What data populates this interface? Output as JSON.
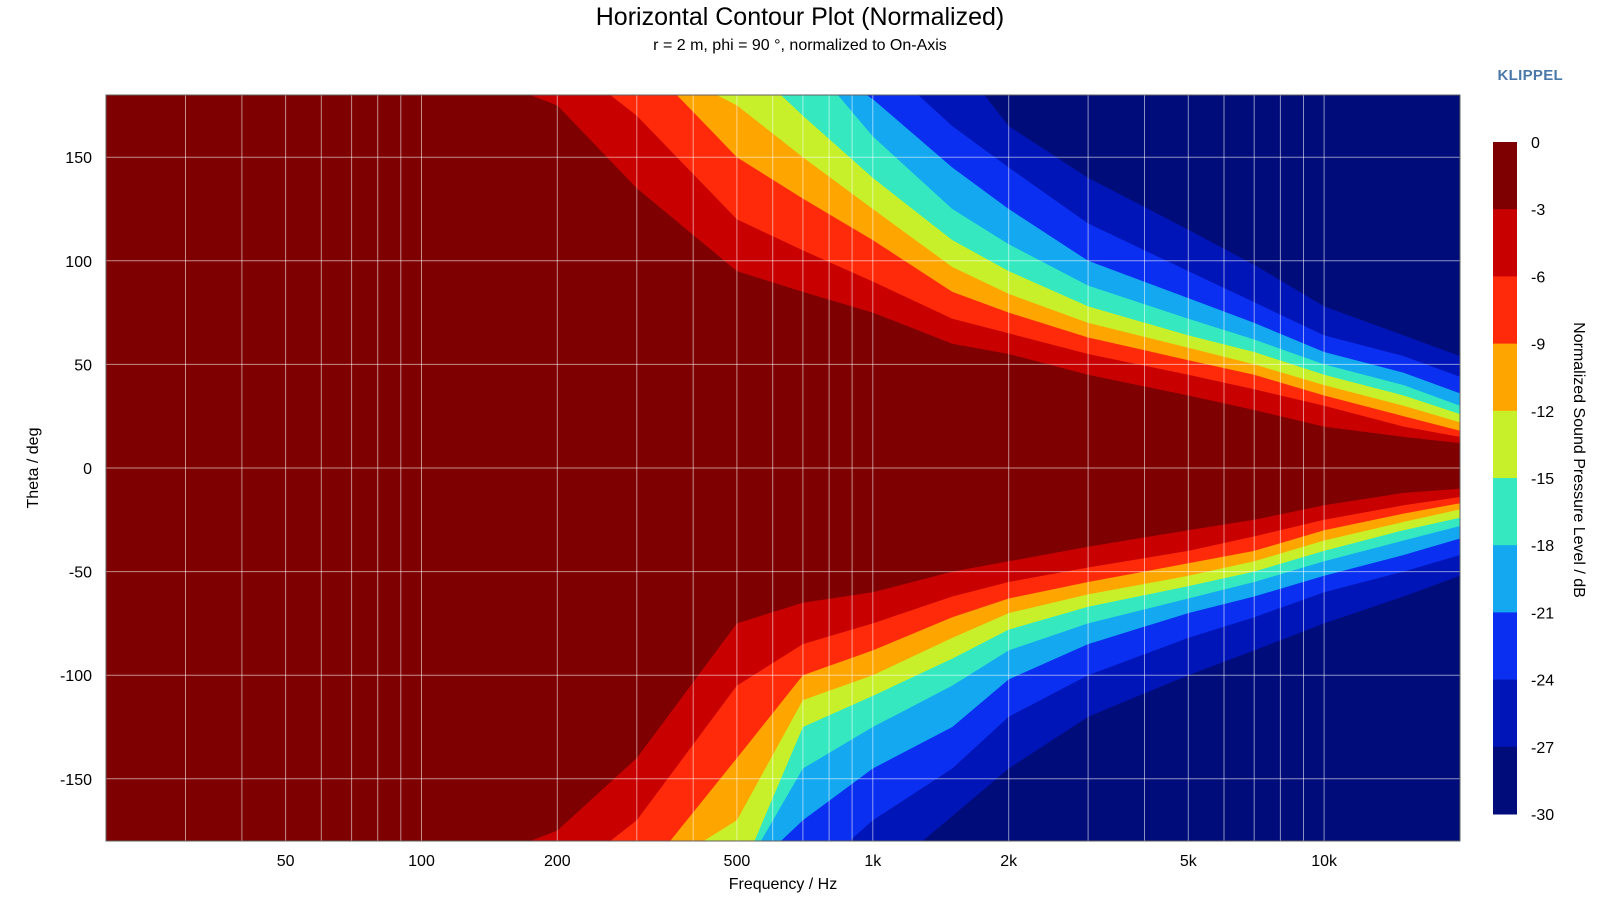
{
  "title": "Horizontal Contour Plot (Normalized)",
  "subtitle": "r = 2 m, phi = 90 °, normalized to On-Axis",
  "brand": "KLIPPEL",
  "chart_data": {
    "type": "heatmap",
    "title": "Horizontal Contour Plot (Normalized)",
    "subtitle": "r = 2 m, phi = 90 °, normalized to On-Axis",
    "xlabel": "Frequency / Hz",
    "ylabel": "Theta / deg",
    "colorbar_label": "Normalized Sound Pressure Level / dB",
    "x_scale": "log",
    "xlim": [
      20,
      20000
    ],
    "ylim": [
      -180,
      180
    ],
    "x_ticks": [
      50,
      100,
      200,
      500,
      1000,
      2000,
      5000,
      10000
    ],
    "x_tick_labels": [
      "50",
      "100",
      "200",
      "500",
      "1k",
      "2k",
      "5k",
      "10k"
    ],
    "y_ticks": [
      150,
      100,
      50,
      0,
      -50,
      -100,
      -150
    ],
    "y_tick_labels": [
      "150",
      "100",
      "50",
      "0",
      "-50",
      "-100",
      "-150"
    ],
    "grid": true,
    "colorbar_levels": [
      0,
      -3,
      -6,
      -9,
      -12,
      -15,
      -18,
      -21,
      -24,
      -27,
      -30
    ],
    "colorbar_tick_labels": [
      "0",
      "-3",
      "-6",
      "-9",
      "-12",
      "-15",
      "-18",
      "-21",
      "-24",
      "-27",
      "-30"
    ],
    "colorbar_colors": [
      "#7f0000",
      "#c90000",
      "#ff2a0a",
      "#ffa500",
      "#c8f02a",
      "#35e8c0",
      "#13a8f0",
      "#0a2ff0",
      "#0015b8",
      "#000c7a"
    ],
    "contour_frequencies_hz": [
      20,
      100,
      200,
      300,
      500,
      700,
      1000,
      1500,
      2000,
      3000,
      5000,
      7000,
      10000,
      15000,
      20000
    ],
    "contour_boundaries": [
      {
        "level": -3,
        "theta_top_deg": [
          999,
          999,
          175,
          135,
          95,
          85,
          75,
          60,
          55,
          45,
          35,
          28,
          20,
          15,
          12
        ],
        "theta_bottom_deg": [
          -999,
          -999,
          -175,
          -140,
          -75,
          -65,
          -60,
          -50,
          -45,
          -38,
          -30,
          -25,
          -18,
          -12,
          -10
        ]
      },
      {
        "level": -6,
        "theta_top_deg": [
          999,
          999,
          999,
          170,
          120,
          105,
          90,
          72,
          65,
          55,
          45,
          38,
          30,
          20,
          15
        ],
        "theta_bottom_deg": [
          -999,
          -999,
          -999,
          -170,
          -105,
          -85,
          -75,
          -62,
          -55,
          -48,
          -40,
          -33,
          -25,
          -18,
          -14
        ]
      },
      {
        "level": -9,
        "theta_top_deg": [
          999,
          999,
          999,
          999,
          150,
          130,
          110,
          85,
          75,
          63,
          52,
          45,
          35,
          25,
          18
        ],
        "theta_bottom_deg": [
          -999,
          -999,
          -999,
          -999,
          -140,
          -100,
          -88,
          -72,
          -63,
          -55,
          -46,
          -40,
          -30,
          -22,
          -17
        ]
      },
      {
        "level": -12,
        "theta_top_deg": [
          999,
          999,
          999,
          999,
          175,
          150,
          125,
          97,
          84,
          70,
          58,
          50,
          40,
          30,
          22
        ],
        "theta_bottom_deg": [
          -999,
          -999,
          -999,
          -999,
          -170,
          -112,
          -100,
          -82,
          -70,
          -61,
          -52,
          -45,
          -35,
          -26,
          -20
        ]
      },
      {
        "level": -15,
        "theta_top_deg": [
          999,
          999,
          999,
          999,
          999,
          170,
          140,
          110,
          95,
          78,
          64,
          56,
          45,
          35,
          26
        ],
        "theta_bottom_deg": [
          -999,
          -999,
          -999,
          -999,
          -999,
          -125,
          -110,
          -92,
          -78,
          -67,
          -57,
          -50,
          -40,
          -30,
          -24
        ]
      },
      {
        "level": -18,
        "theta_top_deg": [
          999,
          999,
          999,
          999,
          999,
          999,
          160,
          125,
          108,
          88,
          72,
          62,
          50,
          40,
          30
        ],
        "theta_bottom_deg": [
          -999,
          -999,
          -999,
          -999,
          -999,
          -145,
          -125,
          -105,
          -88,
          -75,
          -63,
          -55,
          -45,
          -35,
          -28
        ]
      },
      {
        "level": -21,
        "theta_top_deg": [
          999,
          999,
          999,
          999,
          999,
          999,
          178,
          145,
          125,
          100,
          82,
          70,
          56,
          46,
          36
        ],
        "theta_bottom_deg": [
          -999,
          -999,
          -999,
          -999,
          -999,
          -170,
          -145,
          -125,
          -102,
          -85,
          -70,
          -62,
          -52,
          -42,
          -34
        ]
      },
      {
        "level": -24,
        "theta_top_deg": [
          999,
          999,
          999,
          999,
          999,
          999,
          999,
          165,
          145,
          118,
          95,
          80,
          64,
          54,
          44
        ],
        "theta_bottom_deg": [
          -999,
          -999,
          -999,
          -999,
          -999,
          -999,
          -170,
          -145,
          -120,
          -100,
          -82,
          -72,
          -60,
          -50,
          -42
        ]
      },
      {
        "level": -27,
        "theta_top_deg": [
          999,
          999,
          999,
          999,
          999,
          999,
          999,
          999,
          165,
          140,
          115,
          98,
          78,
          64,
          54
        ],
        "theta_bottom_deg": [
          -999,
          -999,
          -999,
          -999,
          -999,
          -999,
          -999,
          -168,
          -145,
          -120,
          -100,
          -88,
          -75,
          -62,
          -52
        ]
      }
    ]
  }
}
